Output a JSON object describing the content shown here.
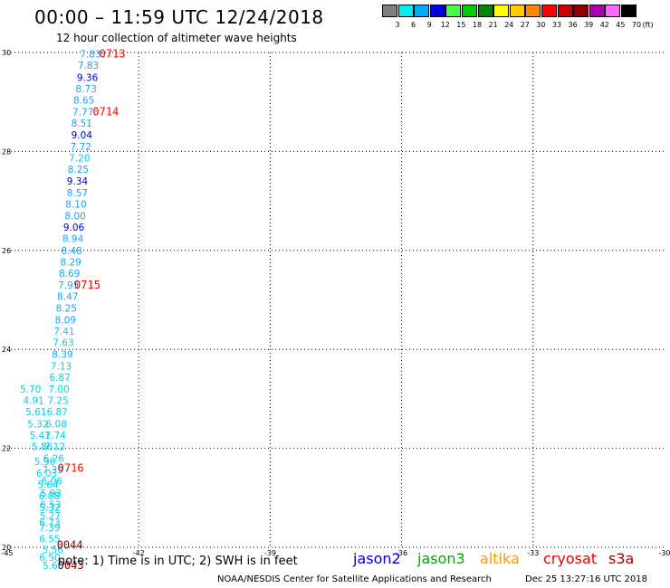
{
  "header": {
    "title": "00:00 – 11:59 UTC 12/24/2018",
    "subtitle": "12 hour collection of altimeter wave heights"
  },
  "legend": {
    "unit": "(ft)",
    "bins": [
      {
        "label": "3",
        "color": "#7f7f7f"
      },
      {
        "label": "6",
        "color": "#00eeee"
      },
      {
        "label": "9",
        "color": "#00aaff"
      },
      {
        "label": "12",
        "color": "#0000dd"
      },
      {
        "label": "15",
        "color": "#44ff44"
      },
      {
        "label": "18",
        "color": "#00cc00"
      },
      {
        "label": "21",
        "color": "#008800"
      },
      {
        "label": "24",
        "color": "#ffff00"
      },
      {
        "label": "27",
        "color": "#ffcc00"
      },
      {
        "label": "30",
        "color": "#ff8800"
      },
      {
        "label": "33",
        "color": "#ff0000"
      },
      {
        "label": "36",
        "color": "#cc0000"
      },
      {
        "label": "39",
        "color": "#880000"
      },
      {
        "label": "42",
        "color": "#aa00aa"
      },
      {
        "label": "45",
        "color": "#ff66ff"
      },
      {
        "label": "70",
        "color": "#000000"
      }
    ]
  },
  "chart_data": {
    "type": "scatter",
    "xlim": [
      -45,
      -30
    ],
    "ylim": [
      20,
      30
    ],
    "x_ticks": [
      "-45",
      "-42",
      "-39",
      "-36",
      "-33",
      "-30"
    ],
    "y_ticks": [
      "20",
      "22",
      "24",
      "26",
      "28",
      "30"
    ],
    "grid": true,
    "colors": {
      "cyan": "#00d2e6",
      "lightblue": "#1aa2ff",
      "blue": "#0000cc",
      "red": "#ff0000",
      "darkred": "#880000"
    },
    "points": [
      {
        "x": -43.1,
        "y": 29.97,
        "label": "7.83",
        "color": "lightblue"
      },
      {
        "x": -43.15,
        "y": 29.74,
        "label": "7.83",
        "color": "lightblue"
      },
      {
        "x": -43.17,
        "y": 29.5,
        "label": "9.36",
        "color": "blue"
      },
      {
        "x": -43.2,
        "y": 29.27,
        "label": "8.73",
        "color": "lightblue"
      },
      {
        "x": -43.25,
        "y": 29.04,
        "label": "8.65",
        "color": "lightblue"
      },
      {
        "x": -43.27,
        "y": 28.8,
        "label": "7.77",
        "color": "lightblue"
      },
      {
        "x": -43.3,
        "y": 28.57,
        "label": "8.51",
        "color": "lightblue"
      },
      {
        "x": -43.3,
        "y": 28.34,
        "label": "9.04",
        "color": "blue"
      },
      {
        "x": -43.32,
        "y": 28.1,
        "label": "7.72",
        "color": "lightblue"
      },
      {
        "x": -43.35,
        "y": 27.87,
        "label": "7.20",
        "color": "cyan"
      },
      {
        "x": -43.38,
        "y": 27.64,
        "label": "8.25",
        "color": "lightblue"
      },
      {
        "x": -43.4,
        "y": 27.4,
        "label": "9.34",
        "color": "blue"
      },
      {
        "x": -43.4,
        "y": 27.17,
        "label": "8.57",
        "color": "lightblue"
      },
      {
        "x": -43.43,
        "y": 26.94,
        "label": "8.10",
        "color": "lightblue"
      },
      {
        "x": -43.45,
        "y": 26.7,
        "label": "8.00",
        "color": "lightblue"
      },
      {
        "x": -43.48,
        "y": 26.47,
        "label": "9.06",
        "color": "blue"
      },
      {
        "x": -43.5,
        "y": 26.24,
        "label": "8.94",
        "color": "lightblue"
      },
      {
        "x": -43.53,
        "y": 26.0,
        "label": "8.48",
        "color": "lightblue"
      },
      {
        "x": -43.55,
        "y": 25.77,
        "label": "8.29",
        "color": "lightblue"
      },
      {
        "x": -43.58,
        "y": 25.54,
        "label": "8.69",
        "color": "lightblue"
      },
      {
        "x": -43.6,
        "y": 25.3,
        "label": "7.95",
        "color": "lightblue"
      },
      {
        "x": -43.62,
        "y": 25.07,
        "label": "8.47",
        "color": "lightblue"
      },
      {
        "x": -43.65,
        "y": 24.84,
        "label": "8.25",
        "color": "lightblue"
      },
      {
        "x": -43.67,
        "y": 24.6,
        "label": "8.09",
        "color": "lightblue"
      },
      {
        "x": -43.7,
        "y": 24.37,
        "label": "7.41",
        "color": "cyan"
      },
      {
        "x": -43.72,
        "y": 24.14,
        "label": "7.63",
        "color": "cyan"
      },
      {
        "x": -43.74,
        "y": 23.9,
        "label": "8.39",
        "color": "lightblue"
      },
      {
        "x": -43.77,
        "y": 23.67,
        "label": "7.13",
        "color": "cyan"
      },
      {
        "x": -43.8,
        "y": 23.44,
        "label": "6.87",
        "color": "cyan"
      },
      {
        "x": -43.82,
        "y": 23.2,
        "label": "7.00",
        "color": "cyan"
      },
      {
        "x": -44.47,
        "y": 23.2,
        "label": "5.70",
        "color": "cyan"
      },
      {
        "x": -43.84,
        "y": 22.97,
        "label": "7.25",
        "color": "cyan"
      },
      {
        "x": -44.4,
        "y": 22.97,
        "label": "4.91",
        "color": "cyan"
      },
      {
        "x": -43.86,
        "y": 22.74,
        "label": "6.87",
        "color": "cyan"
      },
      {
        "x": -44.34,
        "y": 22.74,
        "label": "5.61",
        "color": "cyan"
      },
      {
        "x": -43.88,
        "y": 22.5,
        "label": "6.08",
        "color": "cyan"
      },
      {
        "x": -44.3,
        "y": 22.5,
        "label": "5.32",
        "color": "cyan"
      },
      {
        "x": -43.9,
        "y": 22.27,
        "label": "7.74",
        "color": "cyan"
      },
      {
        "x": -44.25,
        "y": 22.27,
        "label": "5.41",
        "color": "cyan"
      },
      {
        "x": -43.92,
        "y": 22.04,
        "label": "7.12",
        "color": "cyan"
      },
      {
        "x": -44.2,
        "y": 22.04,
        "label": "5.86",
        "color": "cyan"
      },
      {
        "x": -43.94,
        "y": 21.8,
        "label": "6.26",
        "color": "cyan"
      },
      {
        "x": -44.14,
        "y": 21.74,
        "label": "5.96",
        "color": "cyan"
      },
      {
        "x": -43.96,
        "y": 21.57,
        "label": "7.39",
        "color": "cyan"
      },
      {
        "x": -44.1,
        "y": 21.5,
        "label": "6.03",
        "color": "cyan"
      },
      {
        "x": -43.98,
        "y": 21.34,
        "label": "6.06",
        "color": "cyan"
      },
      {
        "x": -44.07,
        "y": 21.27,
        "label": "5.64",
        "color": "cyan"
      },
      {
        "x": -44.0,
        "y": 21.1,
        "label": "5.93",
        "color": "cyan"
      },
      {
        "x": -44.04,
        "y": 21.04,
        "label": "6.88",
        "color": "cyan"
      },
      {
        "x": -44.01,
        "y": 20.87,
        "label": "6.53",
        "color": "cyan"
      },
      {
        "x": -44.03,
        "y": 20.8,
        "label": "5.32",
        "color": "cyan"
      },
      {
        "x": -44.02,
        "y": 20.64,
        "label": "5.27",
        "color": "cyan"
      },
      {
        "x": -44.03,
        "y": 20.5,
        "label": "6.73",
        "color": "cyan"
      },
      {
        "x": -44.03,
        "y": 20.4,
        "label": "7.39",
        "color": "cyan"
      },
      {
        "x": -44.03,
        "y": 20.17,
        "label": "6.55",
        "color": "cyan"
      },
      {
        "x": -43.96,
        "y": 19.95,
        "label": "5.56",
        "color": "cyan"
      },
      {
        "x": -44.03,
        "y": 19.8,
        "label": "6.50",
        "color": "cyan"
      },
      {
        "x": -43.95,
        "y": 19.63,
        "label": "5.63",
        "color": "cyan"
      }
    ],
    "annotations": [
      {
        "x": -42.9,
        "y": 29.97,
        "text": "0713",
        "color": "red"
      },
      {
        "x": -43.05,
        "y": 28.8,
        "text": "0714",
        "color": "red"
      },
      {
        "x": -43.47,
        "y": 25.3,
        "text": "0715",
        "color": "red"
      },
      {
        "x": -43.85,
        "y": 21.6,
        "text": "0716",
        "color": "red"
      },
      {
        "x": -43.87,
        "y": 20.05,
        "text": "0044",
        "color": "darkred"
      },
      {
        "x": -43.85,
        "y": 19.63,
        "text": "0043",
        "color": "darkred"
      }
    ]
  },
  "footer": {
    "note": "note:  1) Time is in UTC;  2) SWH is in feet",
    "satellites": [
      {
        "name": "jason2",
        "color": "#0000dd"
      },
      {
        "name": "jason3",
        "color": "#00aa00"
      },
      {
        "name": "altika",
        "color": "#ff9900"
      },
      {
        "name": "cryosat",
        "color": "#ee0000"
      },
      {
        "name": "s3a",
        "color": "#990000"
      }
    ],
    "credit": "NOAA/NESDIS Center for Satellite Applications and Research",
    "timestamp": "Dec 25 13:27:16 UTC 2018"
  }
}
